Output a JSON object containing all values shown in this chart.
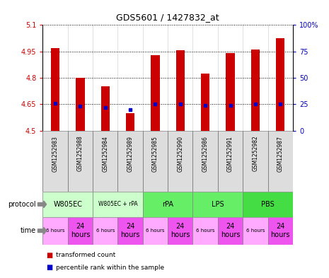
{
  "title": "GDS5601 / 1427832_at",
  "samples": [
    "GSM1252983",
    "GSM1252988",
    "GSM1252984",
    "GSM1252989",
    "GSM1252985",
    "GSM1252990",
    "GSM1252986",
    "GSM1252991",
    "GSM1252982",
    "GSM1252987"
  ],
  "transformed_counts": [
    4.97,
    4.8,
    4.75,
    4.6,
    4.93,
    4.955,
    4.825,
    4.94,
    4.96,
    5.025
  ],
  "percentile_ranks_pct": [
    26,
    23,
    22,
    20,
    25,
    25,
    24,
    24,
    25,
    25
  ],
  "ylim_left": [
    4.5,
    5.1
  ],
  "ylim_right": [
    0,
    100
  ],
  "right_ticks": [
    0,
    25,
    50,
    75,
    100
  ],
  "left_ticks": [
    4.5,
    4.65,
    4.8,
    4.95,
    5.1
  ],
  "protocol_groups": [
    {
      "label": "W805EC",
      "start": 0,
      "end": 2,
      "color": "#ccffcc",
      "fontsize": 7
    },
    {
      "label": "W805EC + rPA",
      "start": 2,
      "end": 4,
      "color": "#ccffcc",
      "fontsize": 5.5
    },
    {
      "label": "rPA",
      "start": 4,
      "end": 6,
      "color": "#66ee66",
      "fontsize": 7
    },
    {
      "label": "LPS",
      "start": 6,
      "end": 8,
      "color": "#66ee66",
      "fontsize": 7
    },
    {
      "label": "PBS",
      "start": 8,
      "end": 10,
      "color": "#44dd44",
      "fontsize": 7
    }
  ],
  "times": [
    "6 hours",
    "24\nhours",
    "6 hours",
    "24\nhours",
    "6 hours",
    "24\nhours",
    "6 hours",
    "24\nhours",
    "6 hours",
    "24\nhours"
  ],
  "time_colors": [
    "#ffaaff",
    "#ee55ee",
    "#ffaaff",
    "#ee55ee",
    "#ffaaff",
    "#ee55ee",
    "#ffaaff",
    "#ee55ee",
    "#ffaaff",
    "#ee55ee"
  ],
  "bar_color": "#cc0000",
  "dot_color": "#0000cc",
  "label_color_left": "#cc0000",
  "label_color_right": "#0000bb"
}
